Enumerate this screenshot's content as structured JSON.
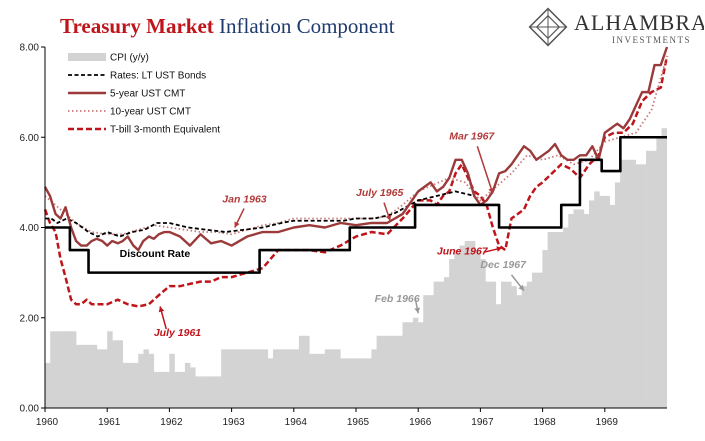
{
  "title_part1": "Treasury Market",
  "title_part2": "Inflation Component",
  "logo": {
    "name": "ALHAMBRA",
    "sub": "INVESTMENTS"
  },
  "colors": {
    "cpi": "#d3d3d3",
    "bonds": "#000000",
    "cmt5": "#9b3a3a",
    "cmt10": "#c97a7a",
    "tbill": "#c0141b",
    "discount": "#000000"
  },
  "chart_data": {
    "type": "line",
    "x_domain": [
      1960,
      1970
    ],
    "ylim": [
      0,
      8
    ],
    "y_ticks": [
      "0.00",
      "2.00",
      "4.00",
      "6.00",
      "8.00"
    ],
    "x_ticks": [
      "1960",
      "1961",
      "1962",
      "1963",
      "1964",
      "1965",
      "1966",
      "1967",
      "1968",
      "1969"
    ],
    "grid": false,
    "legend_position": "top-left",
    "legend": [
      "CPI (y/y)",
      "Rates: LT UST Bonds",
      "5-year UST CMT",
      "10-year UST CMT",
      "T-bill 3-month Equivalent"
    ],
    "series": [
      {
        "name": "CPI (y/y)",
        "type": "bar",
        "step": 0.0833,
        "values": [
          1.0,
          1.7,
          1.7,
          1.7,
          1.7,
          1.7,
          1.4,
          1.4,
          1.4,
          1.4,
          1.3,
          1.3,
          1.7,
          1.5,
          1.5,
          1.0,
          1.0,
          1.0,
          1.2,
          1.3,
          1.2,
          0.8,
          0.8,
          0.8,
          1.2,
          0.8,
          0.8,
          1.0,
          0.9,
          0.7,
          0.7,
          0.7,
          0.7,
          0.7,
          1.3,
          1.3,
          1.3,
          1.3,
          1.3,
          1.3,
          1.3,
          1.3,
          1.3,
          1.1,
          1.3,
          1.3,
          1.3,
          1.3,
          1.3,
          1.6,
          1.6,
          1.2,
          1.2,
          1.2,
          1.3,
          1.3,
          1.3,
          1.1,
          1.1,
          1.1,
          1.1,
          1.1,
          1.1,
          1.3,
          1.6,
          1.6,
          1.6,
          1.6,
          1.6,
          1.9,
          1.9,
          2.0,
          1.9,
          2.5,
          2.5,
          2.8,
          2.8,
          2.9,
          3.3,
          3.5,
          3.6,
          3.7,
          3.7,
          3.5,
          3.3,
          2.8,
          2.8,
          2.3,
          2.8,
          2.8,
          2.7,
          2.5,
          2.7,
          2.8,
          3.0,
          3.0,
          3.5,
          3.9,
          3.9,
          3.9,
          4.0,
          4.3,
          4.4,
          4.4,
          4.3,
          4.6,
          4.8,
          4.7,
          4.7,
          4.5,
          5.0,
          5.5,
          5.5,
          5.5,
          5.4,
          5.4,
          5.7,
          5.7,
          6.0,
          6.2
        ]
      },
      {
        "name": "Rates: LT UST Bonds",
        "x": [
          1960.0,
          1960.1,
          1960.2,
          1960.35,
          1960.5,
          1960.7,
          1960.85,
          1961.0,
          1961.2,
          1961.4,
          1961.6,
          1961.8,
          1962.0,
          1962.3,
          1962.6,
          1962.9,
          1963.2,
          1963.5,
          1963.8,
          1964.0,
          1964.4,
          1964.8,
          1965.0,
          1965.3,
          1965.6,
          1965.8,
          1966.0,
          1966.3,
          1966.6,
          1966.9,
          1967.0
        ],
        "y": [
          4.2,
          4.2,
          4.1,
          4.2,
          4.1,
          3.9,
          3.8,
          3.9,
          3.8,
          3.9,
          3.95,
          4.1,
          4.1,
          4.0,
          3.95,
          3.9,
          3.95,
          4.0,
          4.1,
          4.15,
          4.15,
          4.15,
          4.2,
          4.2,
          4.3,
          4.45,
          4.6,
          4.7,
          4.8,
          4.7,
          4.5
        ]
      },
      {
        "name": "5-year UST CMT",
        "x": [
          1960.0,
          1960.08,
          1960.17,
          1960.25,
          1960.33,
          1960.42,
          1960.5,
          1960.58,
          1960.67,
          1960.75,
          1960.83,
          1960.92,
          1961.0,
          1961.08,
          1961.17,
          1961.25,
          1961.33,
          1961.42,
          1961.5,
          1961.58,
          1961.67,
          1961.75,
          1961.83,
          1961.92,
          1962.0,
          1962.17,
          1962.33,
          1962.5,
          1962.67,
          1962.83,
          1963.0,
          1963.25,
          1963.5,
          1963.75,
          1964.0,
          1964.25,
          1964.5,
          1964.75,
          1965.0,
          1965.25,
          1965.5,
          1965.75,
          1966.0,
          1966.1,
          1966.2,
          1966.3,
          1966.4,
          1966.5,
          1966.6,
          1966.7,
          1966.8,
          1966.9,
          1967.0,
          1967.1,
          1967.2,
          1967.3,
          1967.4,
          1967.5,
          1967.6,
          1967.7,
          1967.8,
          1967.9,
          1968.0,
          1968.1,
          1968.2,
          1968.3,
          1968.4,
          1968.5,
          1968.6,
          1968.7,
          1968.8,
          1968.9,
          1969.0,
          1969.1,
          1969.2,
          1969.3,
          1969.4,
          1969.5,
          1969.6,
          1969.7,
          1969.8,
          1969.9,
          1970.0
        ],
        "y": [
          4.9,
          4.7,
          4.3,
          4.2,
          4.45,
          4.0,
          3.7,
          3.6,
          3.6,
          3.7,
          3.75,
          3.7,
          3.6,
          3.7,
          3.65,
          3.7,
          3.8,
          3.6,
          3.5,
          3.7,
          3.8,
          3.75,
          3.85,
          3.9,
          3.9,
          3.8,
          3.6,
          3.85,
          3.65,
          3.7,
          3.6,
          3.8,
          3.9,
          3.9,
          4.0,
          4.05,
          4.0,
          4.1,
          4.05,
          4.1,
          4.1,
          4.3,
          4.8,
          4.9,
          5.0,
          4.8,
          4.9,
          5.1,
          5.5,
          5.5,
          5.2,
          4.7,
          4.5,
          4.6,
          4.8,
          5.2,
          5.25,
          5.4,
          5.6,
          5.8,
          5.7,
          5.5,
          5.6,
          5.7,
          5.85,
          5.6,
          5.5,
          5.5,
          5.6,
          5.6,
          5.8,
          5.5,
          6.1,
          6.2,
          6.3,
          6.2,
          6.4,
          6.7,
          7.0,
          7.0,
          7.6,
          7.6,
          8.0
        ]
      },
      {
        "name": "10-year UST CMT",
        "x": [
          1960.0,
          1960.25,
          1960.5,
          1960.75,
          1961.0,
          1961.25,
          1961.5,
          1961.75,
          1962.0,
          1962.25,
          1962.5,
          1962.75,
          1963.0,
          1963.25,
          1963.5,
          1963.75,
          1964.0,
          1964.25,
          1964.5,
          1964.75,
          1965.0,
          1965.25,
          1965.5,
          1965.75,
          1966.0,
          1966.25,
          1966.5,
          1966.75,
          1967.0,
          1967.25,
          1967.5,
          1967.75,
          1968.0,
          1968.25,
          1968.5,
          1968.75,
          1969.0,
          1969.25,
          1969.5,
          1969.75,
          1970.0
        ],
        "y": [
          4.7,
          4.4,
          4.1,
          3.9,
          3.85,
          3.85,
          3.95,
          4.05,
          4.0,
          3.95,
          3.9,
          3.9,
          3.85,
          3.95,
          4.05,
          4.1,
          4.2,
          4.2,
          4.2,
          4.2,
          4.2,
          4.2,
          4.25,
          4.5,
          4.8,
          4.95,
          5.1,
          5.0,
          4.6,
          4.9,
          5.2,
          5.6,
          5.5,
          5.6,
          5.4,
          5.5,
          5.9,
          6.0,
          6.1,
          6.6,
          7.8
        ]
      },
      {
        "name": "T-bill 3-month Equivalent",
        "x": [
          1960.0,
          1960.08,
          1960.17,
          1960.25,
          1960.33,
          1960.42,
          1960.5,
          1960.58,
          1960.67,
          1960.75,
          1960.83,
          1960.92,
          1961.0,
          1961.17,
          1961.33,
          1961.5,
          1961.67,
          1961.83,
          1962.0,
          1962.17,
          1962.33,
          1962.5,
          1962.67,
          1962.83,
          1963.0,
          1963.25,
          1963.5,
          1963.75,
          1964.0,
          1964.25,
          1964.5,
          1964.75,
          1965.0,
          1965.25,
          1965.5,
          1965.75,
          1966.0,
          1966.1,
          1966.2,
          1966.3,
          1966.4,
          1966.5,
          1966.6,
          1966.7,
          1966.8,
          1966.9,
          1967.0,
          1967.1,
          1967.2,
          1967.3,
          1967.4,
          1967.5,
          1967.6,
          1967.7,
          1967.8,
          1967.9,
          1968.0,
          1968.15,
          1968.3,
          1968.45,
          1968.6,
          1968.75,
          1968.9,
          1969.0,
          1969.15,
          1969.3,
          1969.45,
          1969.6,
          1969.75,
          1969.9,
          1970.0
        ],
        "y": [
          4.4,
          4.1,
          3.9,
          3.3,
          2.9,
          2.4,
          2.3,
          2.3,
          2.4,
          2.3,
          2.3,
          2.3,
          2.3,
          2.4,
          2.3,
          2.25,
          2.3,
          2.5,
          2.7,
          2.7,
          2.75,
          2.8,
          2.8,
          2.9,
          2.9,
          3.0,
          3.1,
          3.5,
          3.5,
          3.5,
          3.45,
          3.6,
          3.8,
          3.9,
          3.85,
          4.2,
          4.6,
          4.6,
          4.6,
          4.5,
          4.7,
          4.8,
          5.2,
          5.4,
          5.1,
          4.8,
          4.7,
          4.5,
          4.0,
          3.6,
          3.5,
          4.2,
          4.3,
          4.4,
          4.7,
          4.9,
          5.0,
          5.2,
          5.4,
          5.3,
          5.1,
          5.4,
          5.6,
          6.0,
          6.1,
          6.1,
          6.3,
          6.8,
          7.0,
          7.1,
          7.8
        ]
      },
      {
        "name": "Discount Rate",
        "type": "step",
        "x": [
          1960.0,
          1960.4,
          1960.7,
          1963.45,
          1964.9,
          1965.95,
          1967.3,
          1968.3,
          1968.6,
          1968.95,
          1969.25,
          1970.0
        ],
        "y": [
          4.0,
          3.5,
          3.0,
          3.5,
          4.0,
          4.5,
          4.0,
          4.5,
          5.5,
          5.25,
          6.0,
          6.0
        ]
      }
    ],
    "annotations": [
      {
        "text": "Discount Rate",
        "x": 1961.2,
        "y": 3.35,
        "color": "#000000"
      },
      {
        "text": "Jan 1963",
        "x": 1962.85,
        "y": 4.55,
        "color": "#b23a3a"
      },
      {
        "text": "July 1965",
        "x": 1965.0,
        "y": 4.7,
        "color": "#b23a3a"
      },
      {
        "text": "Mar 1967",
        "x": 1966.5,
        "y": 5.95,
        "color": "#b23a3a"
      },
      {
        "text": "June 1967",
        "x": 1966.3,
        "y": 3.4,
        "color": "#c0141b"
      },
      {
        "text": "Dec 1967",
        "x": 1967.0,
        "y": 3.1,
        "color": "#999999"
      },
      {
        "text": "Feb 1966",
        "x": 1965.3,
        "y": 2.35,
        "color": "#999999"
      },
      {
        "text": "July 1961",
        "x": 1961.75,
        "y": 1.6,
        "color": "#c0141b"
      }
    ]
  }
}
